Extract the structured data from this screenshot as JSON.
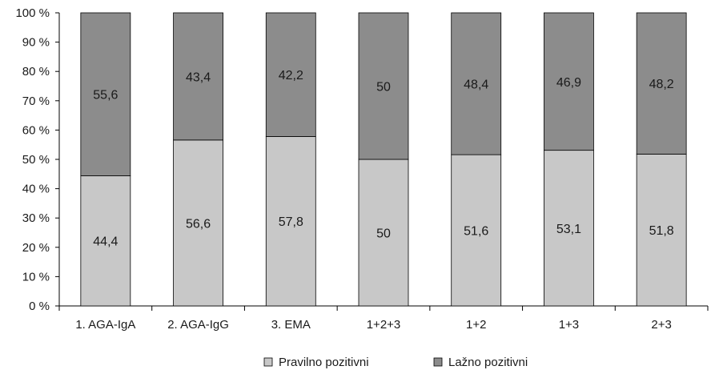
{
  "chart_data": {
    "type": "bar",
    "stacked": true,
    "categories": [
      "1. AGA-IgA",
      "2. AGA-IgG",
      "3. EMA",
      "1+2+3",
      "1+2",
      "1+3",
      "2+3"
    ],
    "series": [
      {
        "name": "Pravilno pozitivni",
        "values": [
          44.4,
          56.6,
          57.8,
          50,
          51.6,
          53.1,
          51.8
        ],
        "labels": [
          "44,4",
          "56,6",
          "57,8",
          "50",
          "51,6",
          "53,1",
          "51,8"
        ],
        "color": "#c8c8c8"
      },
      {
        "name": "Lažno pozitivni",
        "values": [
          55.6,
          43.4,
          42.2,
          50,
          48.4,
          46.9,
          48.2
        ],
        "labels": [
          "55,6",
          "43,4",
          "42,2",
          "50",
          "48,4",
          "46,9",
          "48,2"
        ],
        "color": "#8c8c8c"
      }
    ],
    "ylim": [
      0,
      100
    ],
    "yticks": [
      "0 %",
      "10 %",
      "20 %",
      "30 %",
      "40 %",
      "50 %",
      "60 %",
      "70 %",
      "80 %",
      "90 %",
      "100 %"
    ],
    "grid": false,
    "legend_position": "bottom",
    "title": "",
    "xlabel": "",
    "ylabel": ""
  }
}
